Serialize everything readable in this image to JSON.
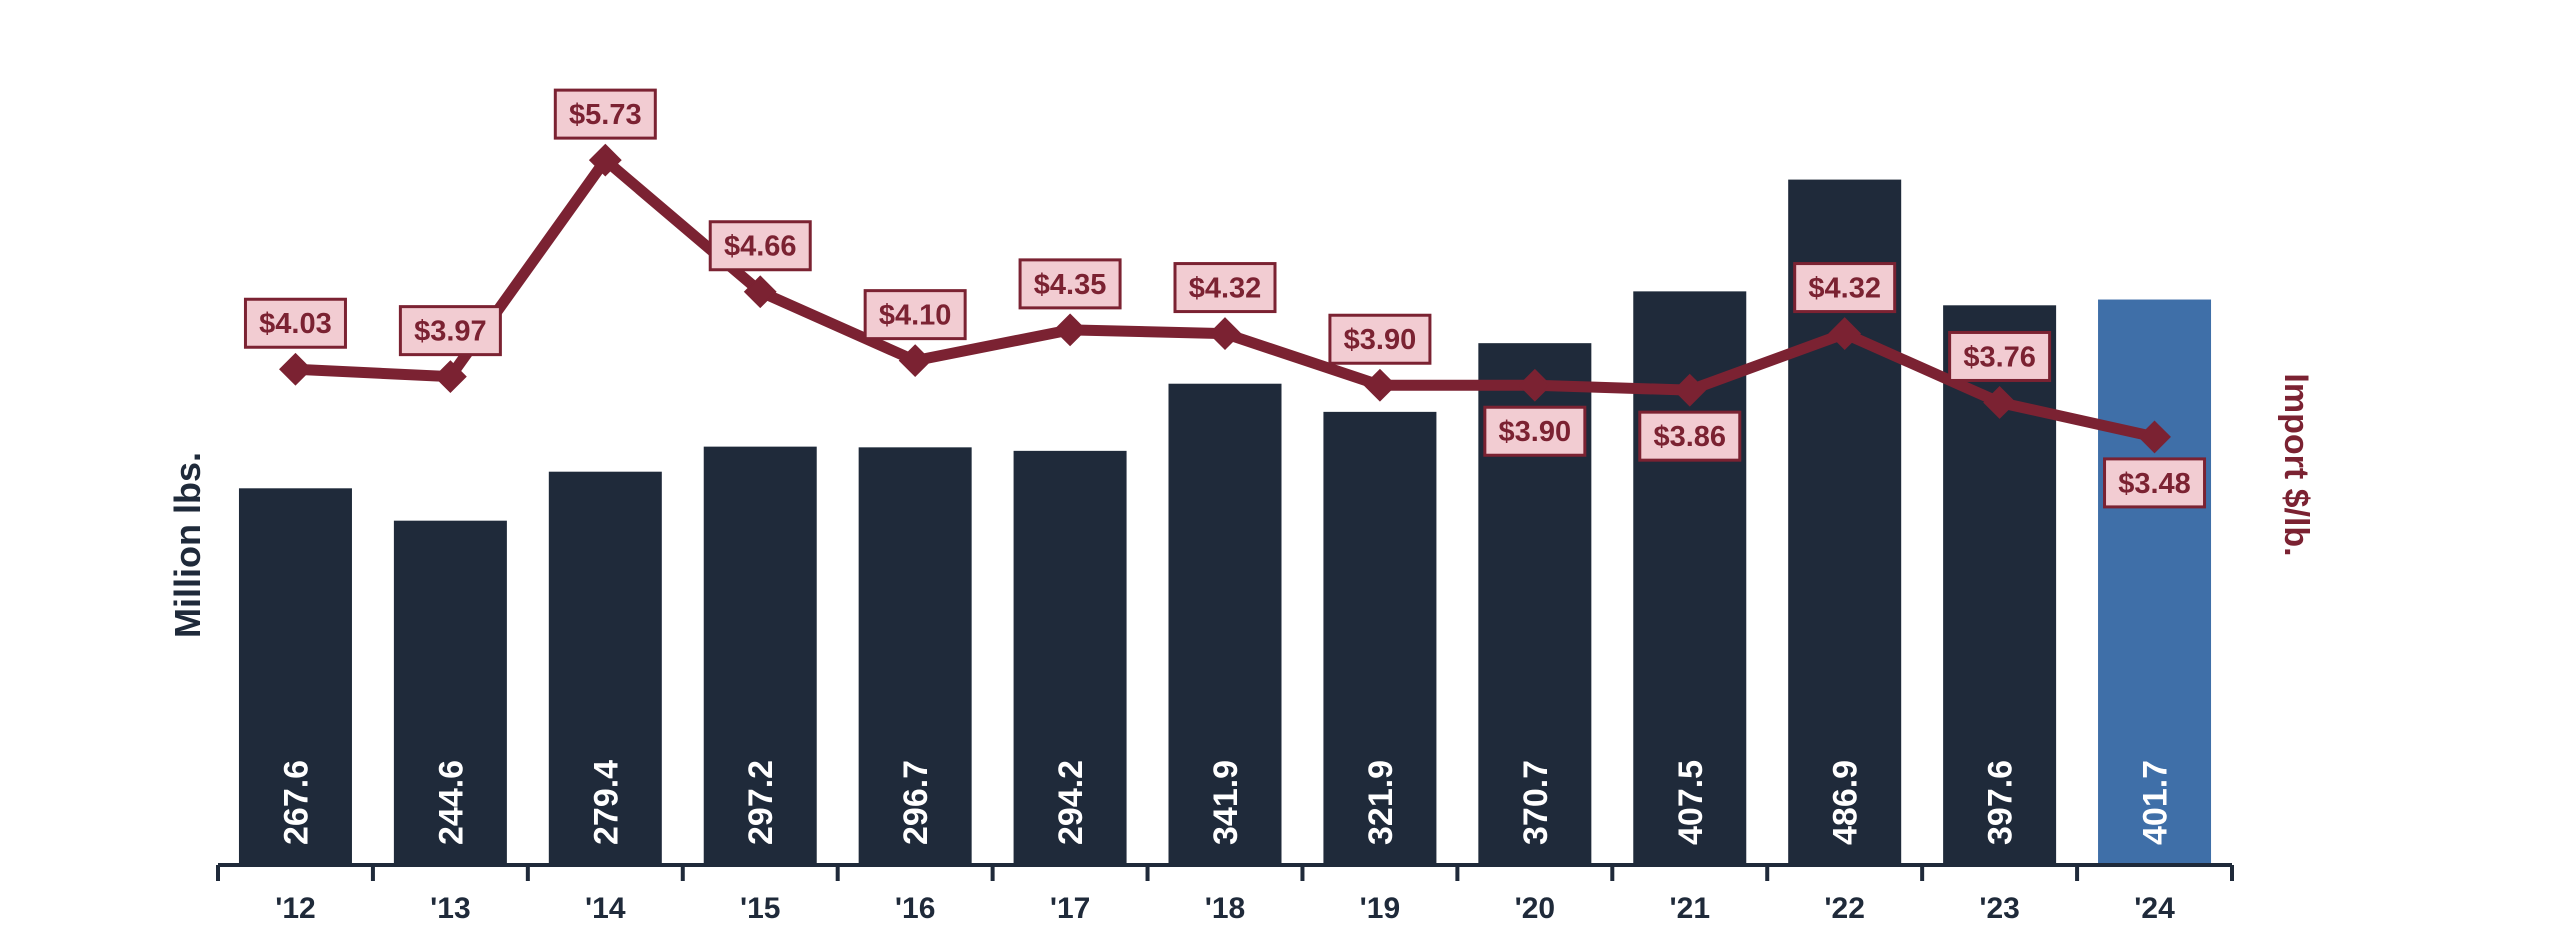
{
  "chart_data": {
    "type": "bar",
    "categories": [
      "'12",
      "'13",
      "'14",
      "'15",
      "'16",
      "'17",
      "'18",
      "'19",
      "'20",
      "'21",
      "'22",
      "'23",
      "'24"
    ],
    "series": [
      {
        "type": "bar",
        "axis": "left",
        "values": [
          267.6,
          244.6,
          279.4,
          297.2,
          296.7,
          294.2,
          341.9,
          321.9,
          370.7,
          407.5,
          486.9,
          397.6,
          401.7
        ],
        "labels": [
          "267.6",
          "244.6",
          "279.4",
          "297.2",
          "296.7",
          "294.2",
          "341.9",
          "321.9",
          "370.7",
          "407.5",
          "486.9",
          "397.6",
          "401.7"
        ]
      },
      {
        "type": "line",
        "axis": "right",
        "values": [
          4.03,
          3.97,
          5.73,
          4.66,
          4.1,
          4.35,
          4.32,
          3.9,
          3.9,
          3.86,
          4.32,
          3.76,
          3.48
        ],
        "labels": [
          "$4.03",
          "$3.97",
          "$5.73",
          "$4.66",
          "$4.10",
          "$4.35",
          "$4.32",
          "$3.90",
          "$3.90",
          "$3.86",
          "$4.32",
          "$3.76",
          "$3.48"
        ],
        "label_positions": [
          "above",
          "above",
          "above",
          "above",
          "above",
          "above",
          "above",
          "above",
          "below",
          "below",
          "above",
          "above",
          "below"
        ]
      }
    ],
    "ylabel": "Million  lbs.",
    "y2label": "Import $/lb.",
    "ylim": [
      0,
      520
    ],
    "y2lim": [
      0,
      6.3
    ],
    "grid": false,
    "colors": {
      "bar": "#1f2a3a",
      "bar_highlight": "#3f6fa8",
      "line": "#7b2232",
      "label_box_fill": "#f2ccd2",
      "label_box_border": "#7b2232",
      "axis": "#1f2a3a"
    },
    "highlight_index": 12
  }
}
